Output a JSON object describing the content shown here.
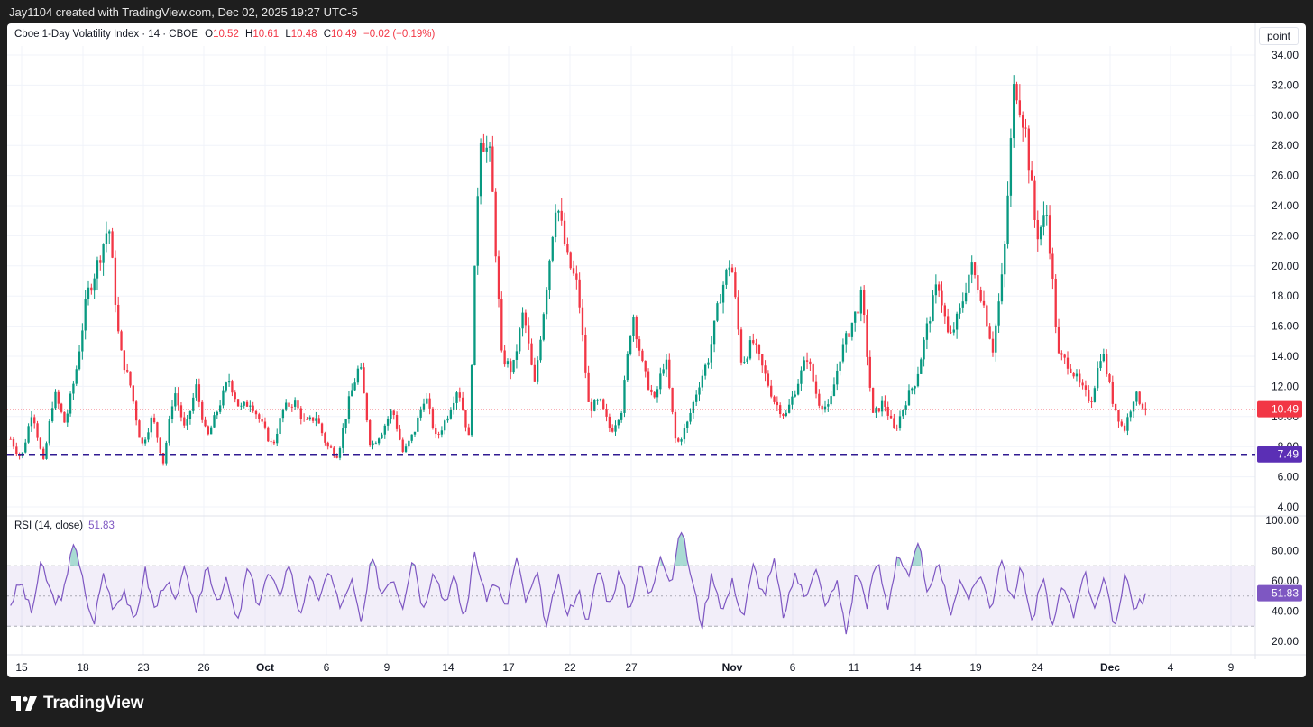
{
  "header": {
    "caption": "Jay1104 created with TradingView.com, Dec 02, 2025 19:27 UTC-5"
  },
  "legend": {
    "title": "Cboe 1-Day Volatility Index · 14 · CBOE",
    "o_label": "O",
    "o_value": "10.52",
    "h_label": "H",
    "h_value": "10.61",
    "l_label": "L",
    "l_value": "10.48",
    "c_label": "C",
    "c_value": "10.49",
    "change": "−0.02 (−0.19%)"
  },
  "rsi_legend": {
    "title": "RSI (14, close)",
    "value": "51.83"
  },
  "scale_button": "point",
  "price_badge": "10.49",
  "line_badge": "7.49",
  "rsi_badge": "51.83",
  "footer": {
    "logo_text": "TradingView"
  },
  "colors": {
    "up": "#089981",
    "down": "#f23645",
    "rsi": "#7e57c2",
    "hline": "#311b92",
    "badge_price": "#f23645",
    "badge_line": "#5b2fb5"
  },
  "chart_data": [
    {
      "type": "candlestick",
      "title": "Cboe 1-Day Volatility Index · 14 · CBOE",
      "x_ticks": [
        "15",
        "18",
        "23",
        "26",
        "Oct",
        "6",
        "9",
        "14",
        "17",
        "22",
        "27",
        "Nov",
        "6",
        "11",
        "14",
        "19",
        "24",
        "Dec",
        "4",
        "9"
      ],
      "y_ticks": [
        "34.00",
        "32.00",
        "30.00",
        "28.00",
        "26.00",
        "24.00",
        "22.00",
        "20.00",
        "18.00",
        "16.00",
        "14.00",
        "12.00",
        "10.00",
        "8.00",
        "6.00",
        "4.00"
      ],
      "ylim": [
        4,
        34
      ],
      "last_close": 10.49,
      "horizontal_line": 7.49,
      "series": [
        {
          "x": "15",
          "values": [
            8.5,
            7.2,
            10.5,
            6.8,
            11.6
          ]
        },
        {
          "x": "18",
          "values": [
            9.5,
            13.0,
            18.0,
            20.2,
            22.8,
            14.5,
            12.0
          ]
        },
        {
          "x": "23",
          "values": [
            8.0,
            10.0,
            7.0,
            11.8,
            9.0,
            12.0
          ]
        },
        {
          "x": "26",
          "values": [
            8.5,
            10.5,
            12.5,
            10.5,
            11.0,
            9.5
          ]
        },
        {
          "x": "Oct",
          "values": [
            8.0,
            10.5,
            11.0,
            9.5,
            10.0,
            8.0
          ]
        },
        {
          "x": "6",
          "values": [
            7.5,
            11.0,
            13.5,
            8.0,
            9.0,
            10.5
          ]
        },
        {
          "x": "9",
          "values": [
            7.5,
            9.0,
            11.5,
            8.5,
            10.0,
            12.0
          ]
        },
        {
          "x": "14",
          "values": [
            8.5,
            29.0,
            27.0,
            14.0,
            13.0,
            17.0
          ]
        },
        {
          "x": "17",
          "values": [
            12.0,
            18.0,
            24.5,
            20.5,
            18.5
          ]
        },
        {
          "x": "22",
          "values": [
            10.5,
            11.0,
            9.0,
            10.5,
            17.0,
            13.0
          ]
        },
        {
          "x": "27",
          "values": [
            11.0,
            14.0,
            8.0,
            9.5,
            12.0
          ]
        },
        {
          "x": "Nov",
          "values": [
            14.0,
            18.0,
            20.5,
            13.5,
            15.0,
            13.0
          ]
        },
        {
          "x": "6",
          "values": [
            11.0,
            10.0,
            12.0,
            14.0,
            11.0,
            10.5
          ]
        },
        {
          "x": "11",
          "values": [
            14.0,
            16.0,
            18.0,
            10.0,
            11.0,
            9.0
          ]
        },
        {
          "x": "14",
          "values": [
            11.0,
            12.5,
            16.0,
            19.0,
            15.0,
            17.0
          ]
        },
        {
          "x": "19",
          "values": [
            20.0,
            18.0,
            14.5,
            20.0,
            32.5,
            29.0
          ]
        },
        {
          "x": "24",
          "values": [
            22.0,
            23.5,
            14.0,
            13.5,
            12.0,
            11.0
          ]
        },
        {
          "x": "Dec",
          "values": [
            14.5,
            11.0,
            9.0,
            11.5,
            10.49
          ]
        }
      ]
    },
    {
      "type": "line",
      "title": "RSI (14, close)",
      "y_ticks": [
        "100.00",
        "80.00",
        "60.00",
        "40.00",
        "20.00"
      ],
      "ylim": [
        10,
        100
      ],
      "band": [
        30,
        70
      ],
      "midline": 50,
      "last_value": 51.83,
      "series": [
        {
          "name": "RSI (14, close)",
          "values": [
            45,
            60,
            38,
            72,
            50,
            45,
            88,
            60,
            30,
            65,
            42,
            55,
            30,
            68,
            40,
            62,
            45,
            70,
            35,
            72,
            48,
            60,
            30,
            70,
            44,
            65,
            50,
            72,
            38,
            60,
            48,
            68,
            40,
            62,
            30,
            75,
            52,
            64,
            44,
            78,
            40,
            70,
            46,
            62,
            34,
            80,
            48,
            60,
            40,
            75,
            45,
            65,
            28,
            64,
            36,
            55,
            32,
            70,
            44,
            66,
            40,
            72,
            48,
            80,
            58,
            95,
            62,
            30,
            66,
            40,
            60,
            35,
            70,
            50,
            72,
            34,
            66,
            48,
            72,
            40,
            62,
            25,
            68,
            45,
            74,
            42,
            80,
            60,
            84,
            50,
            72,
            38,
            60,
            48,
            66,
            40,
            78,
            46,
            70,
            32,
            62,
            30,
            56,
            36,
            68,
            44,
            60,
            28,
            66,
            40,
            52
          ]
        }
      ]
    }
  ]
}
